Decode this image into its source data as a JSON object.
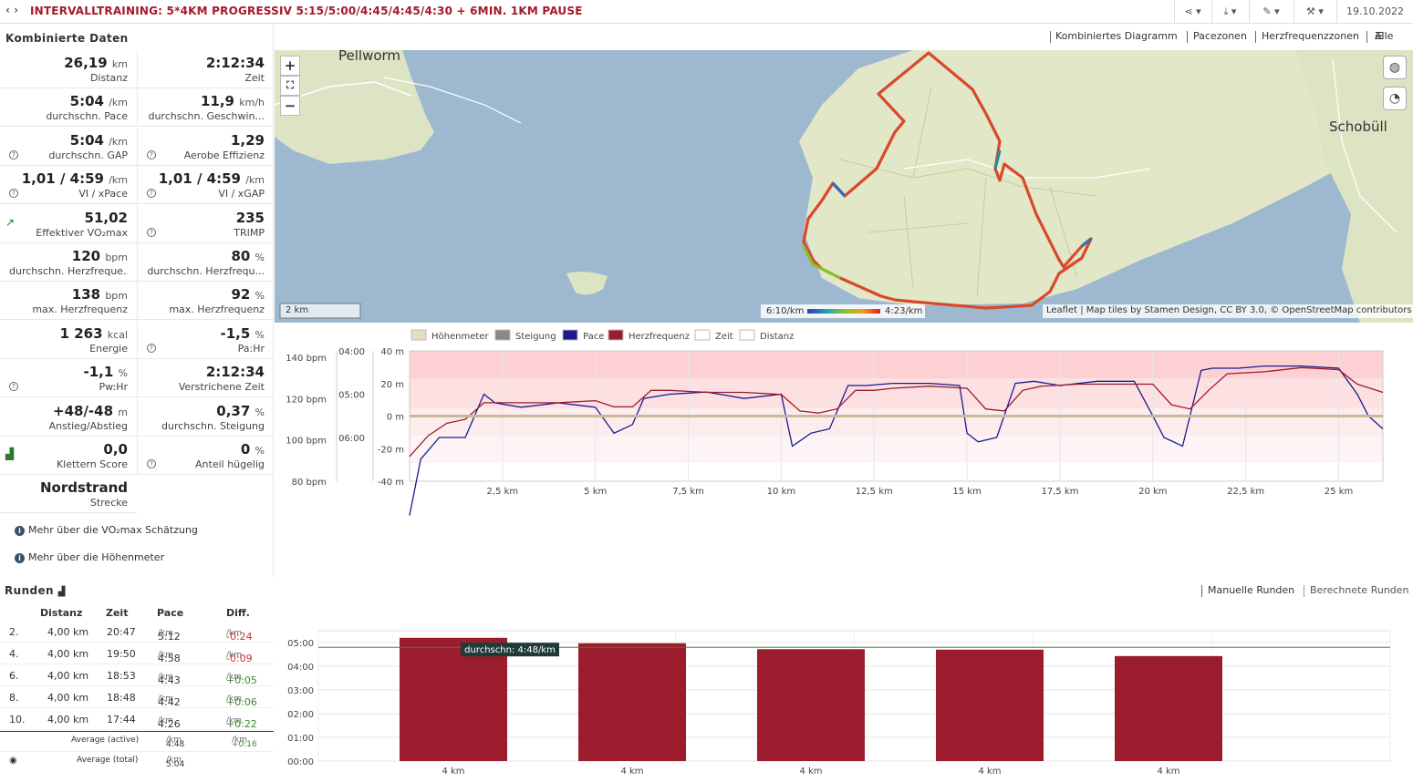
{
  "header": {
    "nav": "‹ ›",
    "title": "INTERVALLTRAINING: 5*4KM PROGRESSIV 5:15/5:00/4:45/4:45/4:30 + 6MIN. 1KM PAUSE",
    "date": "19.10.2022"
  },
  "left_panel": {
    "title": "Kombinierte Daten",
    "stats": [
      {
        "value": "26,19",
        "unit": "km",
        "label": "Distanz"
      },
      {
        "value": "2:12:34",
        "unit": "",
        "label": "Zeit"
      },
      {
        "value": "5:04",
        "unit": "/km",
        "label": "durchschn. Pace"
      },
      {
        "value": "11,9",
        "unit": "km/h",
        "label": "durchschn. Geschwin..."
      },
      {
        "value": "5:04",
        "unit": "/km",
        "label": "durchschn. GAP",
        "help": true
      },
      {
        "value": "1,29",
        "unit": "",
        "label": "Aerobe Effizienz",
        "help": true
      },
      {
        "value": "1,01 / 4:59",
        "unit": "/km",
        "label": "VI / xPace",
        "help": true
      },
      {
        "value": "1,01 / 4:59",
        "unit": "/km",
        "label": "VI / xGAP",
        "help": true
      },
      {
        "value": "51,02",
        "unit": "",
        "label": "Effektiver VO₂max",
        "icon": "↗"
      },
      {
        "value": "235",
        "unit": "",
        "label": "TRIMP",
        "help": true
      },
      {
        "value": "120",
        "unit": "bpm",
        "label": "durchschn. Herzfreque..."
      },
      {
        "value": "80",
        "unit": "%",
        "label": "durchschn. Herzfrequ..."
      },
      {
        "value": "138",
        "unit": "bpm",
        "label": "max. Herzfrequenz"
      },
      {
        "value": "92",
        "unit": "%",
        "label": "max. Herzfrequenz"
      },
      {
        "value": "1 263",
        "unit": "kcal",
        "label": "Energie"
      },
      {
        "value": "-1,5",
        "unit": "%",
        "label": "Pa:Hr",
        "help": true
      },
      {
        "value": "-1,1",
        "unit": "%",
        "label": "Pw:Hr",
        "help": true
      },
      {
        "value": "2:12:34",
        "unit": "",
        "label": "Verstrichene Zeit"
      },
      {
        "value": "+48/-48",
        "unit": "m",
        "label": "Anstieg/Abstieg"
      },
      {
        "value": "0,37",
        "unit": "%",
        "label": "durchschn. Steigung"
      },
      {
        "value": "0,0",
        "unit": "",
        "label": "Klettern Score",
        "icon": "▟"
      },
      {
        "value": "0",
        "unit": "%",
        "label": "Anteil hügelig",
        "help": true
      },
      {
        "value": "Nordstrand",
        "unit": "",
        "label": "Strecke"
      }
    ],
    "links": [
      "Mehr über die VO₂max Schätzung",
      "Mehr über die Höhenmeter"
    ]
  },
  "tabs": [
    "Kombiniertes Diagramm",
    "Pacezonen",
    "Herzfrequenzzonen",
    "Alle"
  ],
  "map": {
    "labels": [
      "Pellworm",
      "Schobüll"
    ],
    "scale": "2 km",
    "legend_min": "6:10/km",
    "legend_max": "4:23/km",
    "attribution": "Leaflet | Map tiles by Stamen Design, CC BY 3.0, © OpenStreetMap contributors"
  },
  "chart_data": [
    {
      "type": "line",
      "legend": [
        "Höhenmeter",
        "Steigung",
        "Pace",
        "Herzfrequenz",
        "Zeit",
        "Distanz"
      ],
      "x_ticks": [
        "2,5 km",
        "5 km",
        "7,5 km",
        "10 km",
        "12,5 km",
        "15 km",
        "17,5 km",
        "20 km",
        "22,5 km",
        "25 km"
      ],
      "hr_ticks": [
        "140 bpm",
        "120 bpm",
        "100 bpm",
        "80 bpm"
      ],
      "pace_ticks": [
        "04:00",
        "05:00",
        "06:00"
      ],
      "grade_ticks": [
        "40 m",
        "20 m",
        "0 m",
        "-20 m",
        "-40 m"
      ],
      "xlim": [
        0,
        26.19
      ],
      "series": [
        {
          "name": "Pace",
          "color": "#1a1a8c",
          "x": [
            0,
            0.3,
            0.8,
            1.5,
            2.0,
            2.3,
            3,
            4,
            5,
            5.5,
            6,
            6.3,
            7,
            8,
            9,
            10,
            10.3,
            10.8,
            11.3,
            11.8,
            12.3,
            13,
            14,
            14.8,
            15,
            15.3,
            15.8,
            16.3,
            16.8,
            17.5,
            18.5,
            19.5,
            20,
            20.3,
            20.8,
            21.3,
            21.6,
            22.3,
            23,
            24,
            25,
            25.5,
            25.8,
            26.19
          ],
          "y": [
            7.8,
            6.5,
            6.0,
            6.0,
            5.0,
            5.2,
            5.3,
            5.2,
            5.3,
            5.9,
            5.7,
            5.1,
            5.0,
            4.95,
            5.1,
            5.0,
            6.2,
            5.9,
            5.8,
            4.8,
            4.8,
            4.75,
            4.75,
            4.8,
            5.9,
            6.1,
            6.0,
            4.75,
            4.7,
            4.8,
            4.7,
            4.7,
            5.5,
            6.0,
            6.2,
            4.45,
            4.4,
            4.4,
            4.35,
            4.35,
            4.4,
            5.0,
            5.5,
            5.8
          ]
        },
        {
          "name": "Herzfrequenz",
          "color": "#9b1c2c",
          "x": [
            0,
            0.5,
            1,
            1.5,
            2,
            3,
            4,
            5,
            5.5,
            6,
            6.5,
            7,
            8,
            9,
            10,
            10.5,
            11,
            11.5,
            12,
            12.5,
            13,
            14,
            15,
            15.5,
            16,
            16.5,
            17,
            18,
            19,
            20,
            20.5,
            21,
            21.5,
            22,
            23,
            24,
            25,
            25.5,
            26.19
          ],
          "y": [
            92,
            102,
            108,
            110,
            118,
            118,
            118,
            119,
            116,
            116,
            124,
            124,
            123,
            123,
            122,
            114,
            113,
            115,
            124,
            124,
            125,
            126,
            125,
            115,
            114,
            124,
            126,
            127,
            127,
            127,
            117,
            115,
            124,
            132,
            133,
            135,
            134,
            127,
            123
          ]
        },
        {
          "name": "Höhenmeter",
          "color": "#c9b99a",
          "x": [
            0,
            5,
            10,
            15,
            20,
            26.19
          ],
          "y": [
            0,
            0,
            0,
            0,
            0,
            0
          ]
        }
      ]
    },
    {
      "type": "bar",
      "categories": [
        "4 km",
        "4 km",
        "4 km",
        "4 km",
        "4 km"
      ],
      "values": [
        5.2,
        4.97,
        4.72,
        4.7,
        4.43
      ],
      "ylim": [
        0,
        5.5
      ],
      "y_ticks": [
        "00:00",
        "01:00",
        "02:00",
        "03:00",
        "04:00",
        "05:00"
      ],
      "average_line": 4.8,
      "average_label": "durchschn: 4:48/km"
    }
  ],
  "runs": {
    "title": "Runden",
    "tabs": [
      "Manuelle Runden",
      "Berechnete Runden"
    ],
    "columns": [
      "Distanz",
      "Zeit",
      "Pace",
      "Diff."
    ],
    "rows": [
      {
        "n": "2.",
        "dist": "4,00 km",
        "time": "20:47",
        "pace": "5:12",
        "diff": "-0:24"
      },
      {
        "n": "4.",
        "dist": "4,00 km",
        "time": "19:50",
        "pace": "4:58",
        "diff": "-0:09"
      },
      {
        "n": "6.",
        "dist": "4,00 km",
        "time": "18:53",
        "pace": "4:43",
        "diff": "+0:05"
      },
      {
        "n": "8.",
        "dist": "4,00 km",
        "time": "18:48",
        "pace": "4:42",
        "diff": "+0:06"
      },
      {
        "n": "10.",
        "dist": "4,00 km",
        "time": "17:44",
        "pace": "4:26",
        "diff": "+0:22"
      }
    ],
    "unit": "/km",
    "avg_active_label": "Average (active)",
    "avg_active_pace": "4:48",
    "avg_active_diff": "+0:16",
    "avg_total_label": "Average (total)",
    "avg_total_pace": "5:04"
  }
}
